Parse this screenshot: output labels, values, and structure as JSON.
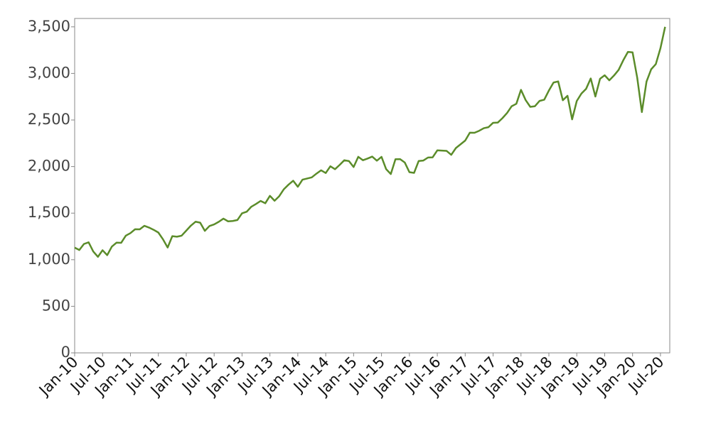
{
  "chart_data": {
    "type": "line",
    "x": [
      "2010-01",
      "2010-02",
      "2010-03",
      "2010-04",
      "2010-05",
      "2010-06",
      "2010-07",
      "2010-08",
      "2010-09",
      "2010-10",
      "2010-11",
      "2010-12",
      "2011-01",
      "2011-02",
      "2011-03",
      "2011-04",
      "2011-05",
      "2011-06",
      "2011-07",
      "2011-08",
      "2011-09",
      "2011-10",
      "2011-11",
      "2011-12",
      "2012-01",
      "2012-02",
      "2012-03",
      "2012-04",
      "2012-05",
      "2012-06",
      "2012-07",
      "2012-08",
      "2012-09",
      "2012-10",
      "2012-11",
      "2012-12",
      "2013-01",
      "2013-02",
      "2013-03",
      "2013-04",
      "2013-05",
      "2013-06",
      "2013-07",
      "2013-08",
      "2013-09",
      "2013-10",
      "2013-11",
      "2013-12",
      "2014-01",
      "2014-02",
      "2014-03",
      "2014-04",
      "2014-05",
      "2014-06",
      "2014-07",
      "2014-08",
      "2014-09",
      "2014-10",
      "2014-11",
      "2014-12",
      "2015-01",
      "2015-02",
      "2015-03",
      "2015-04",
      "2015-05",
      "2015-06",
      "2015-07",
      "2015-08",
      "2015-09",
      "2015-10",
      "2015-11",
      "2015-12",
      "2016-01",
      "2016-02",
      "2016-03",
      "2016-04",
      "2016-05",
      "2016-06",
      "2016-07",
      "2016-08",
      "2016-09",
      "2016-10",
      "2016-11",
      "2016-12",
      "2017-01",
      "2017-02",
      "2017-03",
      "2017-04",
      "2017-05",
      "2017-06",
      "2017-07",
      "2017-08",
      "2017-09",
      "2017-10",
      "2017-11",
      "2017-12",
      "2018-01",
      "2018-02",
      "2018-03",
      "2018-04",
      "2018-05",
      "2018-06",
      "2018-07",
      "2018-08",
      "2018-09",
      "2018-10",
      "2018-11",
      "2018-12",
      "2019-01",
      "2019-02",
      "2019-03",
      "2019-04",
      "2019-05",
      "2019-06",
      "2019-07",
      "2019-08",
      "2019-09",
      "2019-10",
      "2019-11",
      "2019-12",
      "2020-01",
      "2020-02",
      "2020-03",
      "2020-04",
      "2020-05",
      "2020-06",
      "2020-07",
      "2020-08"
    ],
    "values": [
      1130,
      1104,
      1169,
      1187,
      1089,
      1031,
      1102,
      1049,
      1141,
      1183,
      1181,
      1258,
      1286,
      1327,
      1326,
      1364,
      1345,
      1321,
      1292,
      1219,
      1131,
      1253,
      1247,
      1258,
      1312,
      1366,
      1408,
      1398,
      1310,
      1362,
      1379,
      1407,
      1441,
      1412,
      1416,
      1426,
      1498,
      1515,
      1569,
      1598,
      1631,
      1606,
      1686,
      1633,
      1682,
      1757,
      1806,
      1848,
      1783,
      1859,
      1872,
      1884,
      1924,
      1960,
      1931,
      2003,
      1972,
      2018,
      2068,
      2059,
      1995,
      2105,
      2068,
      2086,
      2107,
      2063,
      2104,
      1972,
      1920,
      2079,
      2080,
      2044,
      1940,
      1932,
      2060,
      2065,
      2097,
      2099,
      2174,
      2171,
      2168,
      2126,
      2199,
      2239,
      2279,
      2364,
      2363,
      2384,
      2412,
      2423,
      2470,
      2472,
      2519,
      2575,
      2648,
      2674,
      2824,
      2714,
      2641,
      2648,
      2705,
      2718,
      2816,
      2902,
      2914,
      2712,
      2760,
      2507,
      2704,
      2784,
      2834,
      2946,
      2752,
      2942,
      2980,
      2926,
      2977,
      3038,
      3141,
      3231,
      3226,
      2954,
      2585,
      2912,
      3044,
      3100,
      3271,
      3500
    ],
    "color": "#5b8c2a",
    "xlim": [
      "2010-01",
      "2020-09"
    ],
    "xticks": [
      {
        "value": "2010-01",
        "label": "Jan-10"
      },
      {
        "value": "2010-07",
        "label": "Jul-10"
      },
      {
        "value": "2011-01",
        "label": "Jan-11"
      },
      {
        "value": "2011-07",
        "label": "Jul-11"
      },
      {
        "value": "2012-01",
        "label": "Jan-12"
      },
      {
        "value": "2012-07",
        "label": "Jul-12"
      },
      {
        "value": "2013-01",
        "label": "Jan-13"
      },
      {
        "value": "2013-07",
        "label": "Jul-13"
      },
      {
        "value": "2014-01",
        "label": "Jan-14"
      },
      {
        "value": "2014-07",
        "label": "Jul-14"
      },
      {
        "value": "2015-01",
        "label": "Jan-15"
      },
      {
        "value": "2015-07",
        "label": "Jul-15"
      },
      {
        "value": "2016-01",
        "label": "Jan-16"
      },
      {
        "value": "2016-07",
        "label": "Jul-16"
      },
      {
        "value": "2017-01",
        "label": "Jan-17"
      },
      {
        "value": "2017-07",
        "label": "Jul-17"
      },
      {
        "value": "2018-01",
        "label": "Jan-18"
      },
      {
        "value": "2018-07",
        "label": "Jul-18"
      },
      {
        "value": "2019-01",
        "label": "Jan-19"
      },
      {
        "value": "2019-07",
        "label": "Jul-19"
      },
      {
        "value": "2020-01",
        "label": "Jan-20"
      },
      {
        "value": "2020-07",
        "label": "Jul-20"
      }
    ],
    "ylim": [
      0,
      3590
    ],
    "yticks": [
      0,
      {
        "value": 500,
        "label": "500"
      },
      {
        "value": 1000,
        "label": "1,000"
      },
      {
        "value": 1500,
        "label": "1,500"
      },
      {
        "value": 2000,
        "label": "2,000"
      },
      {
        "value": 2500,
        "label": "2,500"
      },
      {
        "value": 3000,
        "label": "3,000"
      },
      {
        "value": 3500,
        "label": "3,500"
      }
    ],
    "grid": false
  }
}
